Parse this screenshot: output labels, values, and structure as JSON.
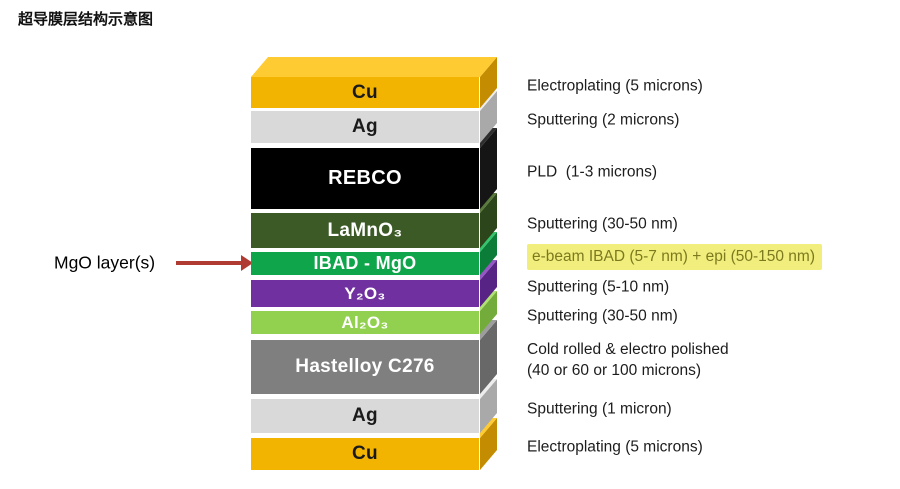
{
  "title": "超导膜层结构示意图",
  "callout": {
    "label": "MgO layer(s)",
    "arrow_color": "#B03B32"
  },
  "highlight": {
    "bg": "#F2EE7D",
    "text_color": "#7C7A1F"
  },
  "layers": [
    {
      "id": "cu-top",
      "label": "Cu",
      "face": "#F2B301",
      "top": "#FFCB33",
      "side": "#C48C00",
      "text": "#1a1a1a",
      "annotation": "Electroplating (5 microns)",
      "highlighted": false
    },
    {
      "id": "ag-top",
      "label": "Ag",
      "face": "#D9D9D9",
      "top": "#EDEDED",
      "side": "#A9A9A9",
      "text": "#1a1a1a",
      "annotation": "Sputtering (2 microns)",
      "highlighted": false
    },
    {
      "id": "rebco",
      "label": "REBCO",
      "face": "#000000",
      "top": "#2E2E2E",
      "side": "#151515",
      "text": "#ffffff",
      "annotation": "PLD  (1-3 microns)",
      "highlighted": false
    },
    {
      "id": "lamno3",
      "label": "LaMnO₃",
      "face": "#3B5A26",
      "top": "#5A7A3C",
      "side": "#2C451B",
      "text": "#ffffff",
      "annotation": "Sputtering (30-50 nm)",
      "highlighted": false
    },
    {
      "id": "ibad-mgo",
      "label": "IBAD - MgO",
      "face": "#0FA54B",
      "top": "#35C46C",
      "side": "#0B7D38",
      "text": "#ffffff",
      "annotation": "e-beam IBAD (5-7 nm) + epi (50-150 nm)",
      "highlighted": true
    },
    {
      "id": "y2o3",
      "label": "Y₂O₃",
      "face": "#7030A0",
      "top": "#9457C3",
      "side": "#572384",
      "text": "#ffffff",
      "annotation": "Sputtering (5-10 nm)",
      "highlighted": false
    },
    {
      "id": "al2o3",
      "label": "Al₂O₃",
      "face": "#92D050",
      "top": "#AFE173",
      "side": "#73AC3B",
      "text": "#ffffff",
      "annotation": "Sputtering (30-50 nm)",
      "highlighted": false
    },
    {
      "id": "hastelloy",
      "label": "Hastelloy C276",
      "face": "#7F7F7F",
      "top": "#9D9D9D",
      "side": "#686868",
      "text": "#ffffff",
      "annotation": "Cold rolled & electro polished\n(40 or 60 or 100 microns)",
      "highlighted": false
    },
    {
      "id": "ag-bottom",
      "label": "Ag",
      "face": "#D9D9D9",
      "top": "#EDEDED",
      "side": "#A9A9A9",
      "text": "#1a1a1a",
      "annotation": "Sputtering (1 micron)",
      "highlighted": false
    },
    {
      "id": "cu-bottom",
      "label": "Cu",
      "face": "#F2B301",
      "top": "#FFCB33",
      "side": "#C48C00",
      "text": "#1a1a1a",
      "annotation": "Electroplating (5 microns)",
      "highlighted": false
    }
  ]
}
